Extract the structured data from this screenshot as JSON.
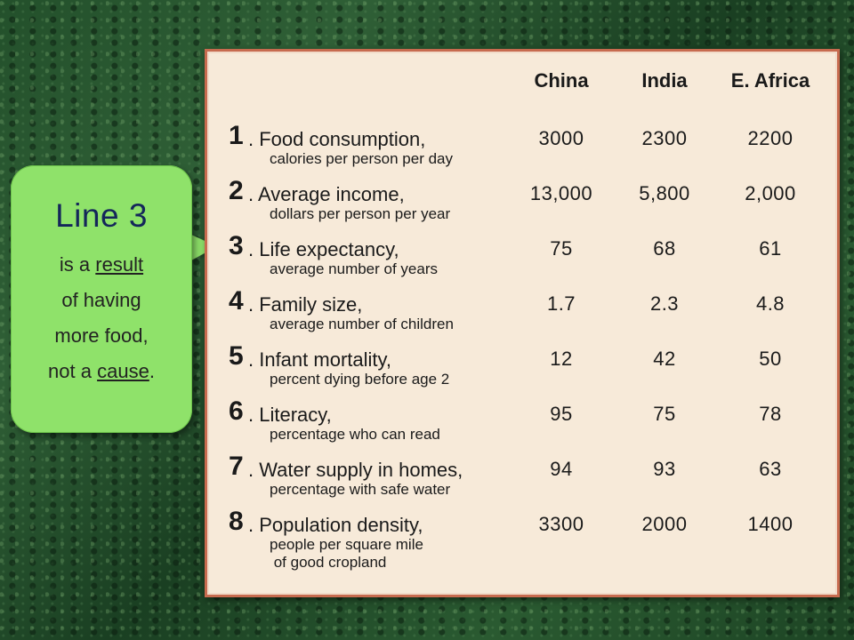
{
  "callout": {
    "title": "Line 3",
    "line1_prefix": "is a ",
    "line1_underlined": "result",
    "line2": "of having",
    "line3": "more food,",
    "line4_prefix": "not a ",
    "line4_underlined": "cause",
    "line4_suffix": "."
  },
  "table": {
    "columns": [
      "China",
      "India",
      "E. Africa"
    ],
    "rows": [
      {
        "num": "1",
        "title": ". Food consumption,",
        "sub": [
          "calories per person per day"
        ],
        "values": [
          "3000",
          "2300",
          "2200"
        ]
      },
      {
        "num": "2",
        "title": ". Average income,",
        "sub": [
          "dollars per person per year"
        ],
        "values": [
          "13,000",
          "5,800",
          "2,000"
        ]
      },
      {
        "num": "3",
        "title": ". Life expectancy,",
        "sub": [
          "average number of years"
        ],
        "values": [
          "75",
          "68",
          "61"
        ]
      },
      {
        "num": "4",
        "title": ". Family size,",
        "sub": [
          "average number of children"
        ],
        "values": [
          "1.7",
          "2.3",
          "4.8"
        ]
      },
      {
        "num": "5",
        "title": ". Infant mortality,",
        "sub": [
          "percent dying before age 2"
        ],
        "values": [
          "12",
          "42",
          "50"
        ]
      },
      {
        "num": "6",
        "title": ". Literacy,",
        "sub": [
          "percentage who can read"
        ],
        "values": [
          "95",
          "75",
          "78"
        ]
      },
      {
        "num": "7",
        "title": ". Water supply in homes,",
        "sub": [
          "percentage with safe water"
        ],
        "values": [
          "94",
          "93",
          "63"
        ]
      },
      {
        "num": "8",
        "title": ". Population density,",
        "sub": [
          "people per square mile",
          " of good cropland"
        ],
        "values": [
          "3300",
          "2000",
          "1400"
        ]
      }
    ]
  }
}
